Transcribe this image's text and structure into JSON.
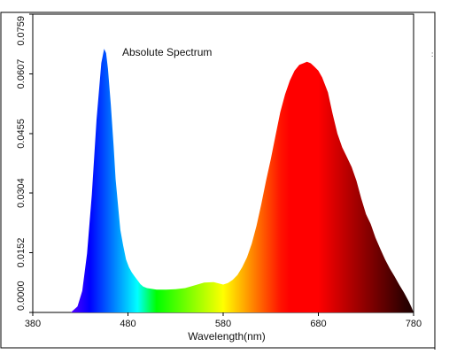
{
  "chart_data": {
    "type": "area",
    "title": "Absolute Spectrum",
    "xlabel": "Wavelength(nm)",
    "ylabel": "",
    "xlim": [
      380,
      780
    ],
    "ylim": [
      0,
      0.0759
    ],
    "x_ticks": [
      "380",
      "480",
      "580",
      "680",
      "780"
    ],
    "y_ticks": [
      "0.0000",
      "0.0152",
      "0.0304",
      "0.0455",
      "0.0607",
      "0.0759"
    ],
    "fill": "visible-spectrum color gradient by wavelength",
    "grid": false,
    "legend": "none",
    "series": [
      {
        "x": [
          380,
          420,
          427,
          432,
          437,
          442,
          447,
          452,
          455,
          457,
          459,
          462,
          465,
          467,
          470,
          472,
          475,
          478,
          481,
          484,
          487,
          490,
          493,
          496,
          500,
          505,
          510,
          520,
          530,
          540,
          550,
          560,
          570,
          580,
          585,
          590,
          595,
          600,
          605,
          610,
          615,
          620,
          625,
          630,
          635,
          640,
          645,
          650,
          655,
          660,
          665,
          668,
          672,
          676,
          680,
          684,
          690,
          695,
          700,
          705,
          710,
          715,
          720,
          725,
          730,
          735,
          740,
          745,
          750,
          755,
          760,
          765,
          770,
          775,
          778,
          780
        ],
        "values": [
          0.0,
          0.0,
          0.0015,
          0.0055,
          0.015,
          0.03,
          0.049,
          0.0635,
          0.0671,
          0.066,
          0.062,
          0.053,
          0.042,
          0.034,
          0.026,
          0.021,
          0.017,
          0.0135,
          0.0115,
          0.0102,
          0.0092,
          0.0082,
          0.0072,
          0.0066,
          0.0062,
          0.006,
          0.0058,
          0.0058,
          0.0059,
          0.0062,
          0.0069,
          0.0076,
          0.0077,
          0.0071,
          0.0075,
          0.0083,
          0.0095,
          0.0115,
          0.014,
          0.0175,
          0.022,
          0.0275,
          0.0335,
          0.039,
          0.045,
          0.051,
          0.0555,
          0.059,
          0.0615,
          0.063,
          0.0635,
          0.0638,
          0.0634,
          0.0625,
          0.0615,
          0.0598,
          0.056,
          0.0505,
          0.0455,
          0.042,
          0.0395,
          0.037,
          0.0335,
          0.029,
          0.025,
          0.0225,
          0.019,
          0.0162,
          0.0135,
          0.0112,
          0.0092,
          0.007,
          0.005,
          0.0028,
          0.0012,
          0.0
        ]
      }
    ]
  }
}
